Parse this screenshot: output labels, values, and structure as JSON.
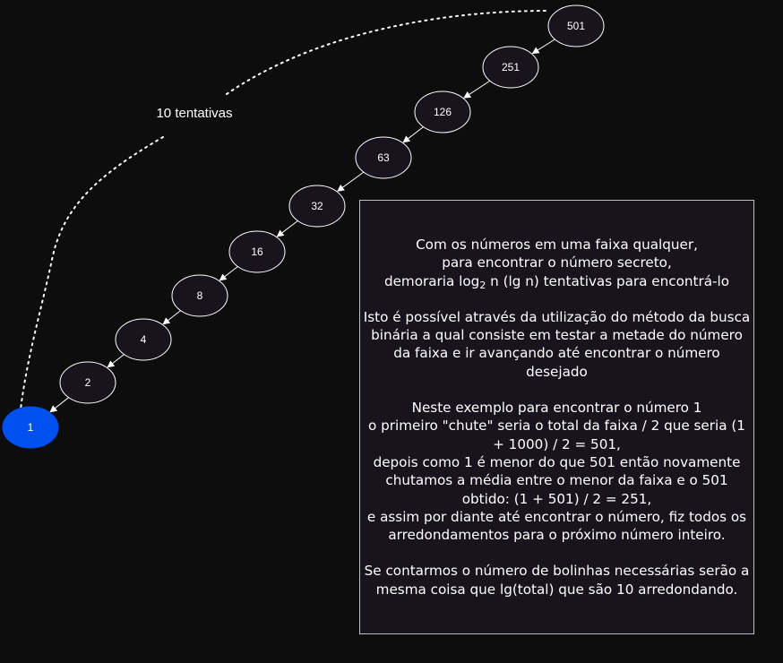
{
  "diagram": {
    "nodes": [
      {
        "label": "501",
        "highlight": false
      },
      {
        "label": "251",
        "highlight": false
      },
      {
        "label": "126",
        "highlight": false
      },
      {
        "label": "63",
        "highlight": false
      },
      {
        "label": "32",
        "highlight": false
      },
      {
        "label": "16",
        "highlight": false
      },
      {
        "label": "8",
        "highlight": false
      },
      {
        "label": "4",
        "highlight": false
      },
      {
        "label": "2",
        "highlight": false
      },
      {
        "label": "1",
        "highlight": true
      }
    ],
    "attempts_label": "10 tentativas",
    "colors": {
      "background": "#0d0d0e",
      "node_fill": "#18141d",
      "node_stroke": "#ffffff",
      "target_fill": "#0050ef",
      "text": "#ffffff"
    }
  },
  "info_box": {
    "p1_line1": "Com os números em uma faixa qualquer,",
    "p1_line2": "para encontrar o número secreto,",
    "p1_line3_before": "demoraria log",
    "p1_line3_sub": "2",
    "p1_line3_after": " n (lg n) tentativas para encontrá-lo",
    "p2": "Isto é possível através da utilização do método da busca binária a qual consiste em testar a metade do número da faixa e ir avançando até encontrar o número desejado",
    "p3_line1": "Neste exemplo para encontrar o número 1",
    "p3_line2": "o primeiro \"chute\" seria o total da faixa / 2 que seria (1 + 1000) / 2 = 501,",
    "p3_line3": "depois como 1 é menor do que 501 então novamente chutamos a média entre o menor da faixa e o 501 obtido: (1 + 501) / 2 = 251,",
    "p3_line4": "e assim por diante até encontrar o número, fiz todos os arredondamentos para o próximo número inteiro.",
    "p4": "Se contarmos o número de bolinhas necessárias serão a mesma coisa que lg(total) que são 10 arredondando."
  }
}
